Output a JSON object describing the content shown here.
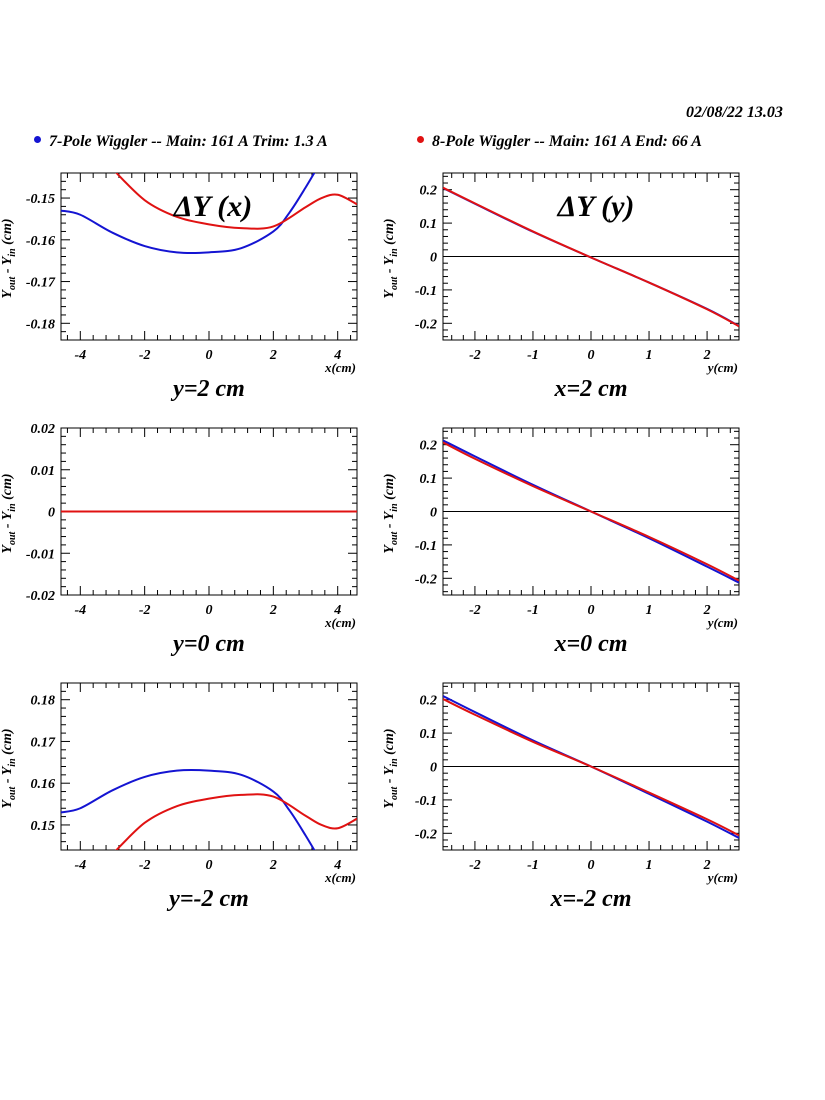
{
  "header": {
    "datestamp": "02/08/22   13.03"
  },
  "legend": [
    {
      "label": "7-Pole Wiggler --  Main: 161 A    Trim: 1.3 A",
      "color": "#1414d2"
    },
    {
      "label": "8-Pole Wiggler --  Main: 161 A    End: 66 A",
      "color": "#e01212"
    }
  ],
  "chart_data": [
    {
      "type": "line",
      "title": "ΔY (x)",
      "subtitle": "y=2 cm",
      "xlabel": "x(cm)",
      "ylabel": "Y_out - Y_in (cm)",
      "xlim": [
        -4.6,
        4.6
      ],
      "ylim": [
        -0.184,
        -0.144
      ],
      "xticks": [
        -4,
        -2,
        0,
        2,
        4
      ],
      "xticklabels": [
        "-4",
        "-2",
        "0",
        "2",
        "4"
      ],
      "yticks": [
        -0.18,
        -0.17,
        -0.16,
        -0.15
      ],
      "yticklabels": [
        "-0.18",
        "-0.17",
        "-0.16",
        "-0.15"
      ],
      "zero_line": false,
      "series": [
        {
          "name": "7-Pole Wiggler",
          "color": "#1414d2",
          "x": [
            -4.6,
            -4,
            -3,
            -2,
            -1,
            0,
            1,
            2,
            2.5,
            3,
            3.5
          ],
          "y": [
            -0.153,
            -0.154,
            -0.1583,
            -0.1615,
            -0.163,
            -0.163,
            -0.162,
            -0.158,
            -0.1535,
            -0.1475,
            -0.141
          ]
        },
        {
          "name": "8-Pole Wiggler",
          "color": "#e01212",
          "x": [
            -3.0,
            -2,
            -1,
            0,
            1,
            2,
            3,
            3.5,
            4,
            4.6
          ],
          "y": [
            -0.143,
            -0.1505,
            -0.1545,
            -0.1563,
            -0.1572,
            -0.1568,
            -0.1522,
            -0.15,
            -0.1492,
            -0.1515
          ]
        }
      ]
    },
    {
      "type": "line",
      "title": "ΔY (y)",
      "subtitle": "x=2 cm",
      "xlabel": "y(cm)",
      "ylabel": "Y_out - Y_in (cm)",
      "xlim": [
        -2.55,
        2.55
      ],
      "ylim": [
        -0.25,
        0.25
      ],
      "xticks": [
        -2,
        -1,
        0,
        1,
        2
      ],
      "xticklabels": [
        "-2",
        "-1",
        "0",
        "1",
        "2"
      ],
      "yticks": [
        -0.2,
        -0.1,
        0,
        0.1,
        0.2
      ],
      "yticklabels": [
        "-0.2",
        "-0.1",
        "0",
        "0.1",
        "0.2"
      ],
      "zero_line": true,
      "series": [
        {
          "name": "7-Pole Wiggler",
          "color": "#1414d2",
          "x": [
            -2.55,
            -2,
            -1,
            0,
            1,
            2,
            2.55
          ],
          "y": [
            0.205,
            0.158,
            0.074,
            -0.003,
            -0.078,
            -0.157,
            -0.208
          ]
        },
        {
          "name": "8-Pole Wiggler",
          "color": "#e01212",
          "x": [
            -2.55,
            -2,
            -1,
            0,
            1,
            2,
            2.55
          ],
          "y": [
            0.206,
            0.159,
            0.075,
            -0.003,
            -0.078,
            -0.158,
            -0.209
          ]
        }
      ]
    },
    {
      "type": "line",
      "subtitle": "y=0 cm",
      "xlabel": "x(cm)",
      "ylabel": "Y_out - Y_in (cm)",
      "xlim": [
        -4.6,
        4.6
      ],
      "ylim": [
        -0.02,
        0.02
      ],
      "xticks": [
        -4,
        -2,
        0,
        2,
        4
      ],
      "xticklabels": [
        "-4",
        "-2",
        "0",
        "2",
        "4"
      ],
      "yticks": [
        -0.02,
        -0.01,
        0,
        0.01,
        0.02
      ],
      "yticklabels": [
        "-0.02",
        "-0.01",
        "0",
        "0.01",
        "0.02"
      ],
      "zero_line": false,
      "series": [
        {
          "name": "7-Pole Wiggler",
          "color": "#1414d2",
          "x": [
            -4.6,
            4.6
          ],
          "y": [
            0,
            0
          ]
        },
        {
          "name": "8-Pole Wiggler",
          "color": "#e01212",
          "x": [
            -4.6,
            4.6
          ],
          "y": [
            0,
            0
          ]
        }
      ]
    },
    {
      "type": "line",
      "subtitle": "x=0 cm",
      "xlabel": "y(cm)",
      "ylabel": "Y_out - Y_in (cm)",
      "xlim": [
        -2.55,
        2.55
      ],
      "ylim": [
        -0.25,
        0.25
      ],
      "xticks": [
        -2,
        -1,
        0,
        1,
        2
      ],
      "xticklabels": [
        "-2",
        "-1",
        "0",
        "1",
        "2"
      ],
      "yticks": [
        -0.2,
        -0.1,
        0,
        0.1,
        0.2
      ],
      "yticklabels": [
        "-0.2",
        "-0.1",
        "0",
        "0.1",
        "0.2"
      ],
      "zero_line": true,
      "series": [
        {
          "name": "7-Pole Wiggler",
          "color": "#1414d2",
          "x": [
            -2.55,
            -2,
            -1,
            0,
            1,
            2,
            2.55
          ],
          "y": [
            0.213,
            0.165,
            0.08,
            0,
            -0.08,
            -0.165,
            -0.213
          ]
        },
        {
          "name": "8-Pole Wiggler",
          "color": "#e01212",
          "x": [
            -2.55,
            -2,
            -1,
            0,
            1,
            2,
            2.55
          ],
          "y": [
            0.207,
            0.158,
            0.076,
            0,
            -0.076,
            -0.158,
            -0.207
          ]
        }
      ]
    },
    {
      "type": "line",
      "subtitle": "y=-2 cm",
      "xlabel": "x(cm)",
      "ylabel": "Y_out - Y_in (cm)",
      "xlim": [
        -4.6,
        4.6
      ],
      "ylim": [
        0.144,
        0.184
      ],
      "xticks": [
        -4,
        -2,
        0,
        2,
        4
      ],
      "xticklabels": [
        "-4",
        "-2",
        "0",
        "2",
        "4"
      ],
      "yticks": [
        0.15,
        0.16,
        0.17,
        0.18
      ],
      "yticklabels": [
        "0.15",
        "0.16",
        "0.17",
        "0.18"
      ],
      "zero_line": false,
      "series": [
        {
          "name": "7-Pole Wiggler",
          "color": "#1414d2",
          "x": [
            -4.6,
            -4,
            -3,
            -2,
            -1,
            0,
            1,
            2,
            2.5,
            3,
            3.5
          ],
          "y": [
            0.153,
            0.154,
            0.1583,
            0.1615,
            0.163,
            0.163,
            0.162,
            0.158,
            0.1535,
            0.1475,
            0.141
          ]
        },
        {
          "name": "8-Pole Wiggler",
          "color": "#e01212",
          "x": [
            -3.0,
            -2,
            -1,
            0,
            1,
            2,
            3,
            3.5,
            4,
            4.6
          ],
          "y": [
            0.143,
            0.1505,
            0.1545,
            0.1563,
            0.1572,
            0.1568,
            0.1522,
            0.15,
            0.1492,
            0.1515
          ]
        }
      ]
    },
    {
      "type": "line",
      "subtitle": "x=-2 cm",
      "xlabel": "y(cm)",
      "ylabel": "Y_out - Y_in (cm)",
      "xlim": [
        -2.55,
        2.55
      ],
      "ylim": [
        -0.25,
        0.25
      ],
      "xticks": [
        -2,
        -1,
        0,
        1,
        2
      ],
      "xticklabels": [
        "-2",
        "-1",
        "0",
        "1",
        "2"
      ],
      "yticks": [
        -0.2,
        -0.1,
        0,
        0.1,
        0.2
      ],
      "yticklabels": [
        "-0.2",
        "-0.1",
        "0",
        "0.1",
        "0.2"
      ],
      "zero_line": true,
      "series": [
        {
          "name": "7-Pole Wiggler",
          "color": "#1414d2",
          "x": [
            -2.55,
            -2,
            -1,
            0,
            1,
            2,
            2.55
          ],
          "y": [
            0.211,
            0.163,
            0.078,
            0,
            -0.082,
            -0.165,
            -0.214
          ]
        },
        {
          "name": "8-Pole Wiggler",
          "color": "#e01212",
          "x": [
            -2.55,
            -2,
            -1,
            0,
            1,
            2,
            2.55
          ],
          "y": [
            0.202,
            0.155,
            0.074,
            0,
            -0.078,
            -0.158,
            -0.206
          ]
        }
      ]
    }
  ]
}
